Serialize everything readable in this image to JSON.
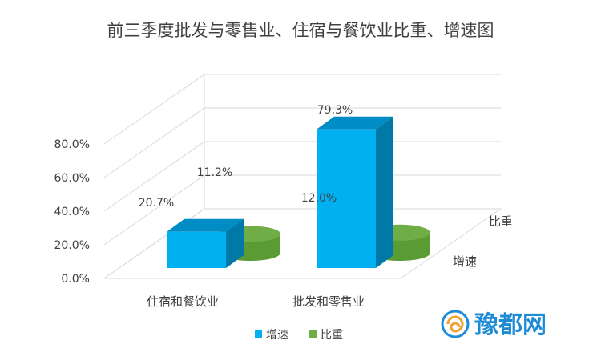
{
  "chart_data": {
    "type": "bar",
    "variant": "3d-column",
    "title": "前三季度批发与零售业、住宿与餐饮业比重、增速图",
    "categories": [
      "住宿和餐饮业",
      "批发和零售业"
    ],
    "series": [
      {
        "name": "增速",
        "values": [
          20.7,
          79.3
        ],
        "value_labels": [
          "20.7%",
          "79.3%"
        ],
        "color": "#00b0f0",
        "shape": "box"
      },
      {
        "name": "比重",
        "values": [
          11.2,
          12.0
        ],
        "value_labels": [
          "11.2%",
          "12.0%"
        ],
        "color": "#70ad47",
        "shape": "cylinder"
      }
    ],
    "depth_labels": [
      "比重",
      "增速"
    ],
    "y_ticks": [
      "0.0%",
      "20.0%",
      "40.0%",
      "60.0%",
      "80.0%"
    ],
    "ylim": [
      0,
      80
    ],
    "grid": true,
    "legend_position": "bottom"
  },
  "watermark": {
    "text": "豫都网",
    "icon": "spiral-logo-icon"
  }
}
